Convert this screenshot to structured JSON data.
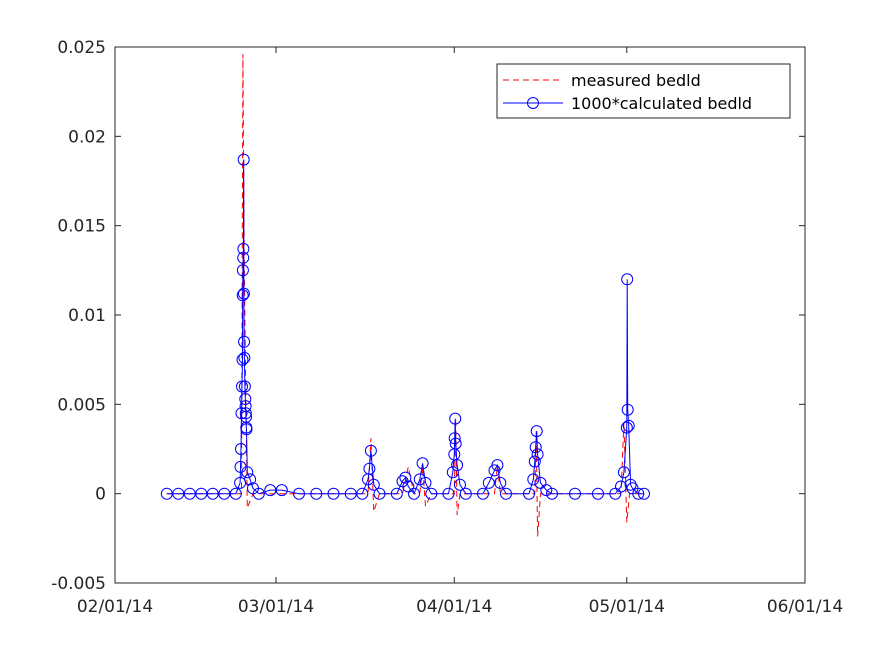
{
  "chart_data": {
    "type": "line",
    "title": "",
    "xlabel": "",
    "ylabel": "",
    "xlim": [
      "2014-02-01",
      "2014-06-01"
    ],
    "ylim": [
      -0.005,
      0.025
    ],
    "xticks": [
      "02/01/14",
      "03/01/14",
      "04/01/14",
      "05/01/14",
      "06/01/14"
    ],
    "yticks": [
      "-0.005",
      "0",
      "0.005",
      "0.01",
      "0.015",
      "0.02",
      "0.025"
    ],
    "grid": false,
    "legend_position": "top-right",
    "series": [
      {
        "name": "measured bedld",
        "color": "#ff0000",
        "line_style": "dashed",
        "marker": "none",
        "points": [
          [
            "2014-02-10",
            0
          ],
          [
            "2014-02-23",
            0
          ],
          [
            "2014-02-23 06:00",
            0.0246
          ],
          [
            "2014-02-23 12:00",
            0.012
          ],
          [
            "2014-02-24",
            -0.0008
          ],
          [
            "2014-02-25",
            0
          ],
          [
            "2014-03-17",
            0
          ],
          [
            "2014-03-17 12:00",
            0.0031
          ],
          [
            "2014-03-18",
            -0.001
          ],
          [
            "2014-03-19",
            0
          ],
          [
            "2014-03-23",
            0
          ],
          [
            "2014-03-24",
            0.0015
          ],
          [
            "2014-03-25",
            0
          ],
          [
            "2014-03-26",
            0
          ],
          [
            "2014-03-26 12:00",
            0.0015
          ],
          [
            "2014-03-27",
            -0.0007
          ],
          [
            "2014-03-28",
            0
          ],
          [
            "2014-04-01",
            0
          ],
          [
            "2014-04-01 06:00",
            0.0042
          ],
          [
            "2014-04-01 12:00",
            -0.0012
          ],
          [
            "2014-04-02",
            0
          ],
          [
            "2014-04-08",
            0
          ],
          [
            "2014-04-08 12:00",
            0.0016
          ],
          [
            "2014-04-09",
            0
          ],
          [
            "2014-04-15",
            0
          ],
          [
            "2014-04-15 06:00",
            0.0035
          ],
          [
            "2014-04-15 12:00",
            -0.0024
          ],
          [
            "2014-04-16",
            0
          ],
          [
            "2014-04-30",
            0
          ],
          [
            "2014-04-30 12:00",
            0.004
          ],
          [
            "2014-05-01",
            -0.0016
          ],
          [
            "2014-05-01 12:00",
            0
          ],
          [
            "2014-05-04",
            0
          ]
        ]
      },
      {
        "name": "1000*calculated bedld",
        "color": "#0000ff",
        "line_style": "solid",
        "marker": "circle",
        "points": [
          [
            "2014-02-10",
            0
          ],
          [
            "2014-02-12",
            0
          ],
          [
            "2014-02-14",
            0
          ],
          [
            "2014-02-16",
            0
          ],
          [
            "2014-02-18",
            0
          ],
          [
            "2014-02-20",
            0
          ],
          [
            "2014-02-22",
            0
          ],
          [
            "2014-02-22 18:00",
            0.0006
          ],
          [
            "2014-02-22 20:00",
            0.0015
          ],
          [
            "2014-02-22 22:00",
            0.0025
          ],
          [
            "2014-02-23",
            0.0045
          ],
          [
            "2014-02-23 02:00",
            0.006
          ],
          [
            "2014-02-23 04:00",
            0.0075
          ],
          [
            "2014-02-23 05:00",
            0.0111
          ],
          [
            "2014-02-23 06:00",
            0.0125
          ],
          [
            "2014-02-23 07:00",
            0.0132
          ],
          [
            "2014-02-23 08:00",
            0.0137
          ],
          [
            "2014-02-23 09:00",
            0.0187
          ],
          [
            "2014-02-23 10:00",
            0.0112
          ],
          [
            "2014-02-23 11:00",
            0.0085
          ],
          [
            "2014-02-23 12:00",
            0.0076
          ],
          [
            "2014-02-23 14:00",
            0.006
          ],
          [
            "2014-02-23 16:00",
            0.0053
          ],
          [
            "2014-02-23 17:00",
            0.0049
          ],
          [
            "2014-02-23 18:00",
            0.0045
          ],
          [
            "2014-02-23 19:00",
            0.0043
          ],
          [
            "2014-02-23 20:00",
            0.0037
          ],
          [
            "2014-02-23 21:00",
            0.0036
          ],
          [
            "2014-02-24",
            0.0012
          ],
          [
            "2014-02-24 12:00",
            0.0008
          ],
          [
            "2014-02-25",
            0.0003
          ],
          [
            "2014-02-26",
            0
          ],
          [
            "2014-02-28",
            0.0002
          ],
          [
            "2014-03-02",
            0.0002
          ],
          [
            "2014-03-05",
            0
          ],
          [
            "2014-03-08",
            0
          ],
          [
            "2014-03-11",
            0
          ],
          [
            "2014-03-14",
            0
          ],
          [
            "2014-03-16",
            0
          ],
          [
            "2014-03-17",
            0.0008
          ],
          [
            "2014-03-17 06:00",
            0.0014
          ],
          [
            "2014-03-17 12:00",
            0.0024
          ],
          [
            "2014-03-18",
            0.0005
          ],
          [
            "2014-03-19",
            0
          ],
          [
            "2014-03-22",
            0
          ],
          [
            "2014-03-23",
            0.0007
          ],
          [
            "2014-03-23 12:00",
            0.0009
          ],
          [
            "2014-03-24",
            0.0004
          ],
          [
            "2014-03-25",
            0
          ],
          [
            "2014-03-26",
            0.0008
          ],
          [
            "2014-03-26 12:00",
            0.0017
          ],
          [
            "2014-03-27",
            0.0006
          ],
          [
            "2014-03-28",
            0
          ],
          [
            "2014-03-31",
            0
          ],
          [
            "2014-03-31 18:00",
            0.0012
          ],
          [
            "2014-04-01",
            0.0022
          ],
          [
            "2014-04-01 02:00",
            0.0031
          ],
          [
            "2014-04-01 04:00",
            0.0042
          ],
          [
            "2014-04-01 06:00",
            0.0028
          ],
          [
            "2014-04-01 12:00",
            0.0016
          ],
          [
            "2014-04-02",
            0.0005
          ],
          [
            "2014-04-03",
            0
          ],
          [
            "2014-04-06",
            0
          ],
          [
            "2014-04-07",
            0.0006
          ],
          [
            "2014-04-08",
            0.0013
          ],
          [
            "2014-04-08 12:00",
            0.0016
          ],
          [
            "2014-04-09",
            0.0006
          ],
          [
            "2014-04-10",
            0
          ],
          [
            "2014-04-14",
            0
          ],
          [
            "2014-04-14 18:00",
            0.0008
          ],
          [
            "2014-04-15",
            0.0018
          ],
          [
            "2014-04-15 04:00",
            0.0026
          ],
          [
            "2014-04-15 08:00",
            0.0035
          ],
          [
            "2014-04-15 12:00",
            0.0022
          ],
          [
            "2014-04-16",
            0.0006
          ],
          [
            "2014-04-17",
            0.0002
          ],
          [
            "2014-04-18",
            0
          ],
          [
            "2014-04-22",
            0
          ],
          [
            "2014-04-26",
            0
          ],
          [
            "2014-04-29",
            0
          ],
          [
            "2014-04-30",
            0.0004
          ],
          [
            "2014-04-30 12:00",
            0.0012
          ],
          [
            "2014-05-01",
            0.0037
          ],
          [
            "2014-05-01 02:00",
            0.012
          ],
          [
            "2014-05-01 04:00",
            0.0047
          ],
          [
            "2014-05-01 08:00",
            0.0038
          ],
          [
            "2014-05-01 16:00",
            0.0005
          ],
          [
            "2014-05-02",
            0.0003
          ],
          [
            "2014-05-03",
            0
          ],
          [
            "2014-05-04",
            0
          ]
        ]
      }
    ]
  }
}
